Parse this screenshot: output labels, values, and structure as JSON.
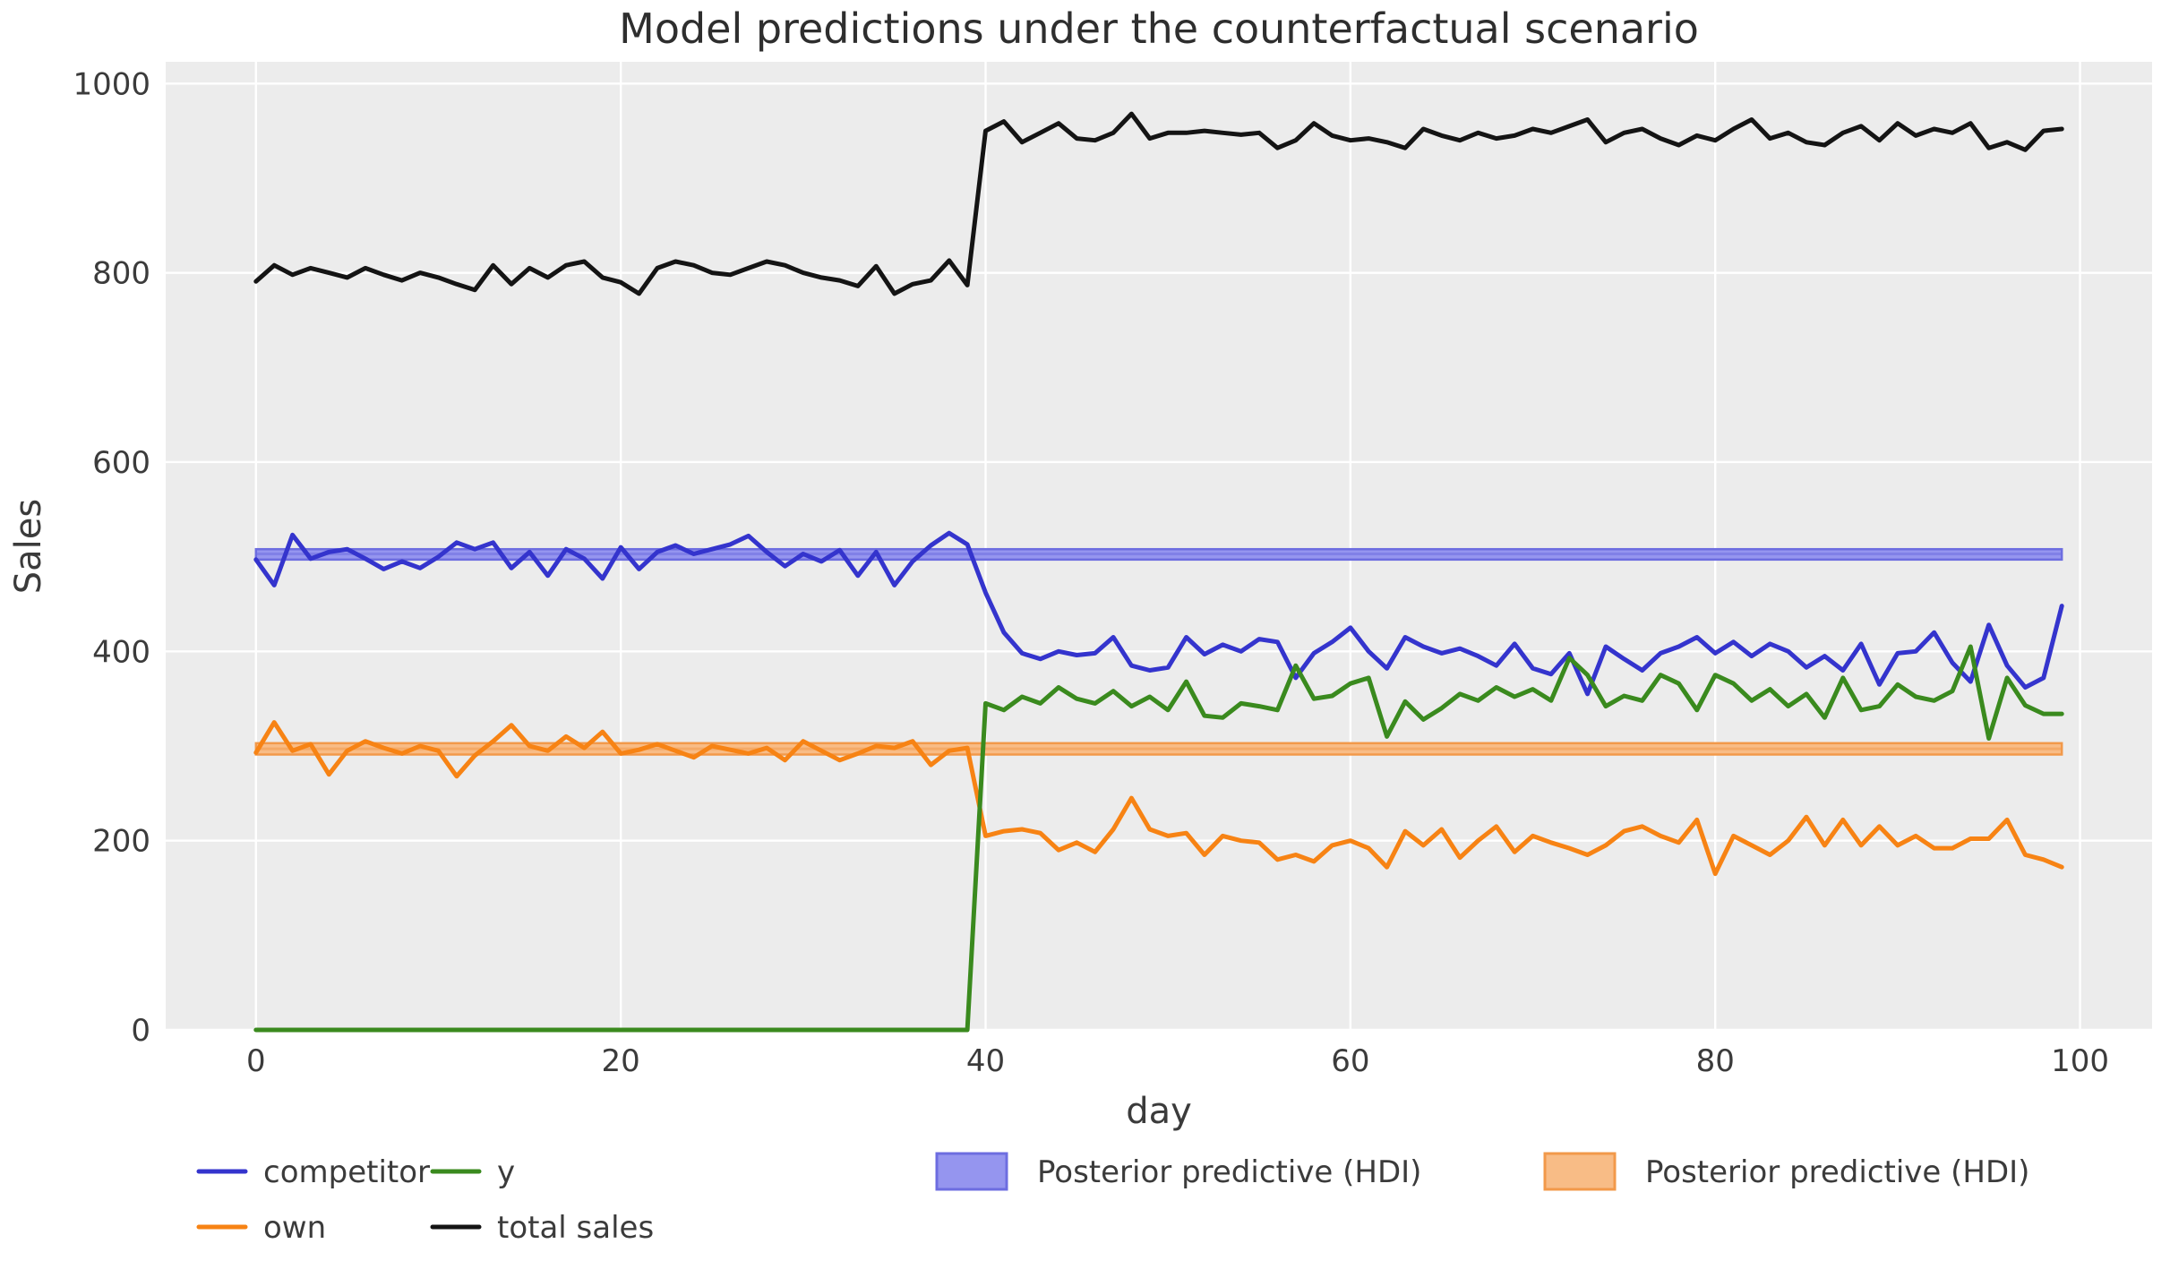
{
  "figure": {
    "title": "Model predictions under the counterfactual scenario",
    "xlabel": "day",
    "ylabel": "Sales"
  },
  "chart_data": {
    "type": "line",
    "title": "Model predictions under the counterfactual scenario",
    "xlabel": "day",
    "ylabel": "Sales",
    "xlim": [
      -4.95,
      103.95
    ],
    "ylim": [
      0,
      1023
    ],
    "xticks": [
      0,
      20,
      40,
      60,
      80,
      100
    ],
    "yticks": [
      0,
      200,
      400,
      600,
      800,
      1000
    ],
    "grid": true,
    "plot_background": "#ececec",
    "grid_color": "#ffffff",
    "x": [
      0,
      1,
      2,
      3,
      4,
      5,
      6,
      7,
      8,
      9,
      10,
      11,
      12,
      13,
      14,
      15,
      16,
      17,
      18,
      19,
      20,
      21,
      22,
      23,
      24,
      25,
      26,
      27,
      28,
      29,
      30,
      31,
      32,
      33,
      34,
      35,
      36,
      37,
      38,
      39,
      40,
      41,
      42,
      43,
      44,
      45,
      46,
      47,
      48,
      49,
      50,
      51,
      52,
      53,
      54,
      55,
      56,
      57,
      58,
      59,
      60,
      61,
      62,
      63,
      64,
      65,
      66,
      67,
      68,
      69,
      70,
      71,
      72,
      73,
      74,
      75,
      76,
      77,
      78,
      79,
      80,
      81,
      82,
      83,
      84,
      85,
      86,
      87,
      88,
      89,
      90,
      91,
      92,
      93,
      94,
      95,
      96,
      97,
      98,
      99
    ],
    "series": [
      {
        "name": "competitor",
        "color": "#3434cd",
        "linewidth": 5,
        "values": [
          497,
          470,
          523,
          498,
          505,
          508,
          498,
          487,
          495,
          488,
          500,
          515,
          508,
          515,
          488,
          505,
          480,
          508,
          498,
          477,
          510,
          487,
          505,
          512,
          503,
          508,
          513,
          522,
          505,
          490,
          503,
          495,
          507,
          480,
          505,
          470,
          495,
          512,
          525,
          513,
          462,
          420,
          398,
          392,
          400,
          396,
          398,
          415,
          385,
          380,
          383,
          415,
          397,
          407,
          400,
          413,
          410,
          372,
          398,
          410,
          425,
          400,
          382,
          415,
          405,
          398,
          403,
          395,
          385,
          408,
          382,
          376,
          398,
          355,
          405,
          392,
          380,
          398,
          405,
          415,
          398,
          410,
          395,
          408,
          400,
          383,
          395,
          380,
          408,
          365,
          398,
          400,
          420,
          388,
          368,
          428,
          385,
          362,
          372,
          448
        ]
      },
      {
        "name": "own",
        "color": "#f78314",
        "linewidth": 5,
        "values": [
          293,
          325,
          295,
          302,
          270,
          295,
          305,
          298,
          292,
          300,
          295,
          268,
          290,
          305,
          322,
          300,
          295,
          310,
          298,
          315,
          292,
          296,
          302,
          295,
          288,
          300,
          296,
          292,
          298,
          285,
          305,
          295,
          285,
          292,
          300,
          298,
          305,
          280,
          295,
          298,
          205,
          210,
          212,
          208,
          190,
          198,
          188,
          212,
          245,
          212,
          205,
          208,
          185,
          205,
          200,
          198,
          180,
          185,
          178,
          195,
          200,
          192,
          172,
          210,
          195,
          212,
          182,
          200,
          215,
          188,
          205,
          198,
          192,
          185,
          195,
          210,
          215,
          205,
          198,
          222,
          165,
          205,
          195,
          185,
          200,
          225,
          195,
          222,
          195,
          215,
          195,
          205,
          192,
          192,
          202,
          202,
          222,
          185,
          180,
          172
        ]
      },
      {
        "name": "y",
        "color": "#3a8a1e",
        "linewidth": 5,
        "values": [
          0,
          0,
          0,
          0,
          0,
          0,
          0,
          0,
          0,
          0,
          0,
          0,
          0,
          0,
          0,
          0,
          0,
          0,
          0,
          0,
          0,
          0,
          0,
          0,
          0,
          0,
          0,
          0,
          0,
          0,
          0,
          0,
          0,
          0,
          0,
          0,
          0,
          0,
          0,
          0,
          345,
          338,
          352,
          345,
          362,
          350,
          345,
          358,
          342,
          352,
          338,
          368,
          332,
          330,
          345,
          342,
          338,
          385,
          350,
          353,
          366,
          372,
          310,
          347,
          328,
          340,
          355,
          348,
          362,
          352,
          360,
          348,
          393,
          375,
          342,
          353,
          348,
          375,
          366,
          338,
          375,
          366,
          348,
          360,
          342,
          355,
          330,
          372,
          338,
          342,
          365,
          352,
          348,
          358,
          405,
          308,
          372,
          343,
          334,
          334
        ]
      },
      {
        "name": "total sales",
        "color": "#141414",
        "linewidth": 5,
        "values": [
          791,
          808,
          798,
          805,
          800,
          795,
          805,
          798,
          792,
          800,
          795,
          788,
          782,
          808,
          788,
          805,
          795,
          808,
          812,
          795,
          790,
          778,
          805,
          812,
          808,
          800,
          798,
          805,
          812,
          808,
          800,
          795,
          792,
          786,
          807,
          778,
          788,
          792,
          813,
          787,
          950,
          960,
          938,
          948,
          958,
          942,
          940,
          948,
          968,
          942,
          948,
          948,
          950,
          948,
          946,
          948,
          932,
          940,
          958,
          945,
          940,
          942,
          938,
          932,
          952,
          945,
          940,
          948,
          942,
          945,
          952,
          948,
          955,
          962,
          938,
          948,
          952,
          942,
          935,
          945,
          940,
          952,
          962,
          942,
          948,
          938,
          935,
          948,
          955,
          940,
          958,
          945,
          952,
          948,
          958,
          932,
          938,
          930,
          950,
          952
        ]
      }
    ],
    "bands": [
      {
        "name": "Posterior predictive (HDI)",
        "applies_to": "competitor",
        "x_start": 0,
        "x_end": 99,
        "lo": 497,
        "hi": 508,
        "mid": 503,
        "fill": "#9595ef",
        "edge": "#6d6de0"
      },
      {
        "name": "Posterior predictive (HDI)",
        "applies_to": "own",
        "x_start": 0,
        "x_end": 99,
        "lo": 291,
        "hi": 303,
        "mid": 297,
        "fill": "#f8bc86",
        "edge": "#f2994a"
      }
    ],
    "legend": {
      "position": "below-axes",
      "entries": [
        {
          "label": "competitor",
          "type": "line",
          "color": "#3434cd"
        },
        {
          "label": "own",
          "type": "line",
          "color": "#f78314"
        },
        {
          "label": "y",
          "type": "line",
          "color": "#3a8a1e"
        },
        {
          "label": "total sales",
          "type": "line",
          "color": "#141414"
        },
        {
          "label": "Posterior predictive (HDI)",
          "type": "patch",
          "fill": "#9595ef",
          "edge": "#6d6de0"
        },
        {
          "label": "Posterior predictive (HDI)",
          "type": "patch",
          "fill": "#f8bc86",
          "edge": "#f2994a"
        }
      ]
    }
  }
}
